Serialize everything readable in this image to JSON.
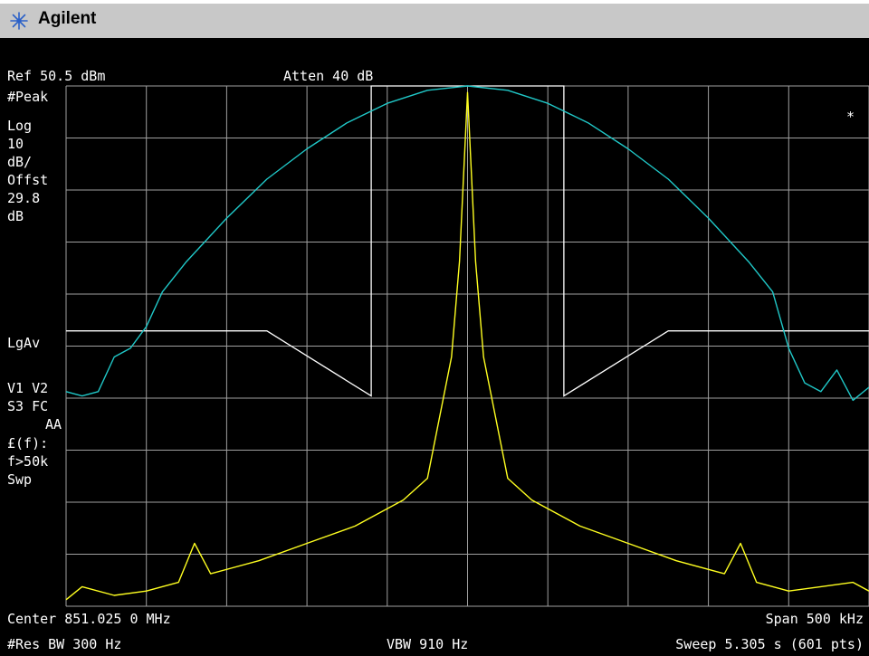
{
  "window": {
    "brand": "Agilent"
  },
  "header": {
    "ref_level": "Ref 50.5 dBm",
    "attenuation": "Atten 40 dB"
  },
  "left_panel": [
    "#Peak",
    "Log",
    "10",
    "dB/",
    "Offst",
    "29.8",
    "dB",
    "LgAv",
    "V1  V2",
    "S3  FC",
    "AA",
    "£(f):",
    "f>50k",
    "Swp"
  ],
  "marker_flag": "*",
  "footer": {
    "center": "Center 851.025 0 MHz",
    "span": "Span 500 kHz",
    "res_bw": "#Res BW 300 Hz",
    "vbw": "VBW 910 Hz",
    "sweep": "Sweep 5.305 s (601 pts)"
  },
  "colors": {
    "mask_trace": "#20c8c8",
    "signal_trace": "#ffff20",
    "limit_line": "#ffffff",
    "grid": "#a0a0a0",
    "titlebar": "#c8c8c8"
  },
  "chart_data": {
    "type": "line",
    "x_range_khz": [
      -250,
      250
    ],
    "y_range_db": [
      -69.5,
      50.5
    ],
    "series": [
      {
        "values": [
          [
            -250,
            -20
          ],
          [
            -240,
            -21
          ],
          [
            -230,
            -20
          ],
          [
            -220,
            -12
          ],
          [
            -210,
            -10
          ],
          [
            -200,
            -5
          ],
          [
            -190,
            3
          ],
          [
            -175,
            10
          ],
          [
            -150,
            20
          ],
          [
            -125,
            29
          ],
          [
            -100,
            36
          ],
          [
            -75,
            42
          ],
          [
            -50,
            46.5
          ],
          [
            -25,
            49.5
          ],
          [
            0,
            50.5
          ],
          [
            25,
            49.5
          ],
          [
            50,
            46.5
          ],
          [
            75,
            42
          ],
          [
            100,
            36
          ],
          [
            125,
            29
          ],
          [
            150,
            20
          ],
          [
            175,
            10
          ],
          [
            190,
            3
          ],
          [
            200,
            -10
          ],
          [
            210,
            -18
          ],
          [
            220,
            -20
          ],
          [
            230,
            -15
          ],
          [
            240,
            -22
          ],
          [
            250,
            -19
          ]
        ]
      },
      {
        "values": [
          [
            -250,
            -68
          ],
          [
            -240,
            -65
          ],
          [
            -220,
            -67
          ],
          [
            -200,
            -66
          ],
          [
            -180,
            -64
          ],
          [
            -170,
            -55
          ],
          [
            -160,
            -62
          ],
          [
            -130,
            -59
          ],
          [
            -100,
            -55
          ],
          [
            -70,
            -51
          ],
          [
            -40,
            -45
          ],
          [
            -25,
            -40
          ],
          [
            -10,
            -12
          ],
          [
            -5,
            10
          ],
          [
            0,
            49
          ],
          [
            5,
            10
          ],
          [
            10,
            -12
          ],
          [
            25,
            -40
          ],
          [
            40,
            -45
          ],
          [
            70,
            -51
          ],
          [
            100,
            -55
          ],
          [
            130,
            -59
          ],
          [
            160,
            -62
          ],
          [
            170,
            -55
          ],
          [
            180,
            -64
          ],
          [
            200,
            -66
          ],
          [
            220,
            -65
          ],
          [
            240,
            -64
          ],
          [
            250,
            -66
          ]
        ]
      }
    ],
    "limit_line": {
      "values": [
        [
          -250,
          -6
        ],
        [
          -125,
          -6
        ],
        [
          -60,
          -21
        ],
        [
          -60,
          50.5
        ],
        [
          60,
          50.5
        ],
        [
          60,
          -21
        ],
        [
          125,
          -6
        ],
        [
          250,
          -6
        ]
      ]
    }
  }
}
